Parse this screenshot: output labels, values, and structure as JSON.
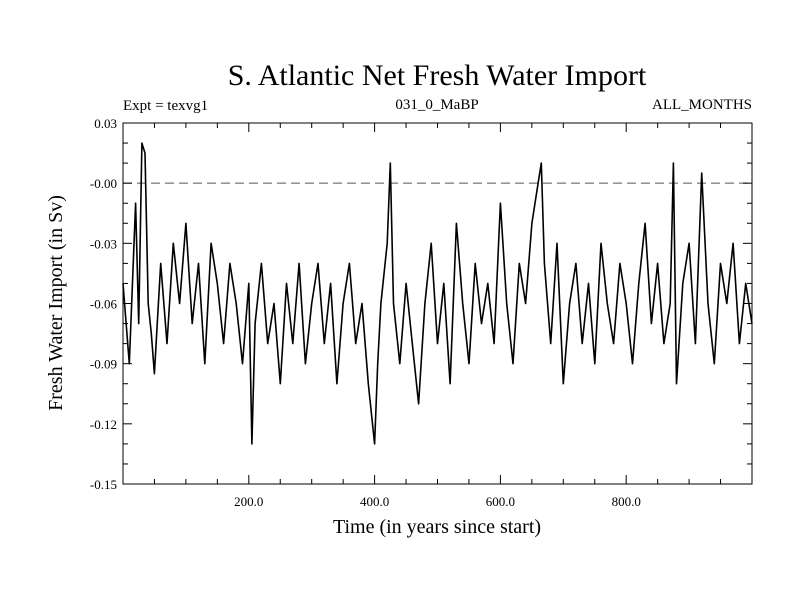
{
  "chart_data": {
    "type": "line",
    "title": "S. Atlantic Net Fresh Water Import",
    "subtitle_left": "Expt = texvg1",
    "subtitle_center": "031_0_MaBP",
    "subtitle_right": "ALL_MONTHS",
    "xlabel": "Time (in years since start)",
    "ylabel": "Fresh Water Import (in Sv)",
    "xlim": [
      0,
      1000
    ],
    "ylim": [
      -0.15,
      0.03
    ],
    "xticks": [
      200,
      400,
      600,
      800
    ],
    "xtick_labels": [
      "200.0",
      "400.0",
      "600.0",
      "800.0"
    ],
    "yticks": [
      0.03,
      0.0,
      -0.03,
      -0.06,
      -0.09,
      -0.12,
      -0.15
    ],
    "ytick_labels": [
      "0.03",
      "-0.00",
      "-0.03",
      "-0.06",
      "-0.09",
      "-0.12",
      "-0.15"
    ],
    "reference_line": {
      "y": 0.0,
      "style": "dashed"
    },
    "series": [
      {
        "name": "Net Fresh Water Import",
        "x": [
          0,
          10,
          20,
          25,
          30,
          35,
          40,
          45,
          50,
          60,
          70,
          80,
          90,
          100,
          110,
          120,
          130,
          140,
          150,
          160,
          170,
          180,
          190,
          200,
          205,
          210,
          220,
          230,
          240,
          250,
          260,
          270,
          280,
          290,
          300,
          310,
          320,
          330,
          340,
          350,
          360,
          370,
          380,
          390,
          400,
          405,
          410,
          420,
          425,
          430,
          440,
          450,
          460,
          470,
          480,
          490,
          500,
          510,
          520,
          530,
          540,
          550,
          560,
          570,
          580,
          590,
          600,
          610,
          620,
          630,
          640,
          650,
          660,
          665,
          670,
          680,
          690,
          700,
          710,
          720,
          730,
          740,
          750,
          760,
          770,
          780,
          790,
          800,
          810,
          820,
          830,
          840,
          850,
          860,
          870,
          875,
          880,
          890,
          900,
          910,
          920,
          930,
          940,
          950,
          960,
          970,
          980,
          990,
          1000
        ],
        "y": [
          -0.05,
          -0.09,
          -0.01,
          -0.07,
          0.02,
          0.015,
          -0.06,
          -0.075,
          -0.095,
          -0.04,
          -0.08,
          -0.03,
          -0.06,
          -0.02,
          -0.07,
          -0.04,
          -0.09,
          -0.03,
          -0.05,
          -0.08,
          -0.04,
          -0.06,
          -0.09,
          -0.05,
          -0.13,
          -0.07,
          -0.04,
          -0.08,
          -0.06,
          -0.1,
          -0.05,
          -0.08,
          -0.04,
          -0.09,
          -0.06,
          -0.04,
          -0.08,
          -0.05,
          -0.1,
          -0.06,
          -0.04,
          -0.08,
          -0.06,
          -0.1,
          -0.13,
          -0.09,
          -0.06,
          -0.03,
          0.01,
          -0.06,
          -0.09,
          -0.05,
          -0.08,
          -0.11,
          -0.06,
          -0.03,
          -0.08,
          -0.05,
          -0.1,
          -0.02,
          -0.06,
          -0.09,
          -0.04,
          -0.07,
          -0.05,
          -0.08,
          -0.01,
          -0.06,
          -0.09,
          -0.04,
          -0.06,
          -0.02,
          0.0,
          0.01,
          -0.04,
          -0.08,
          -0.03,
          -0.1,
          -0.06,
          -0.04,
          -0.08,
          -0.05,
          -0.09,
          -0.03,
          -0.06,
          -0.08,
          -0.04,
          -0.06,
          -0.09,
          -0.05,
          -0.02,
          -0.07,
          -0.04,
          -0.08,
          -0.06,
          0.01,
          -0.1,
          -0.05,
          -0.03,
          -0.08,
          0.005,
          -0.06,
          -0.09,
          -0.04,
          -0.06,
          -0.03,
          -0.08,
          -0.05,
          -0.07
        ]
      }
    ]
  }
}
